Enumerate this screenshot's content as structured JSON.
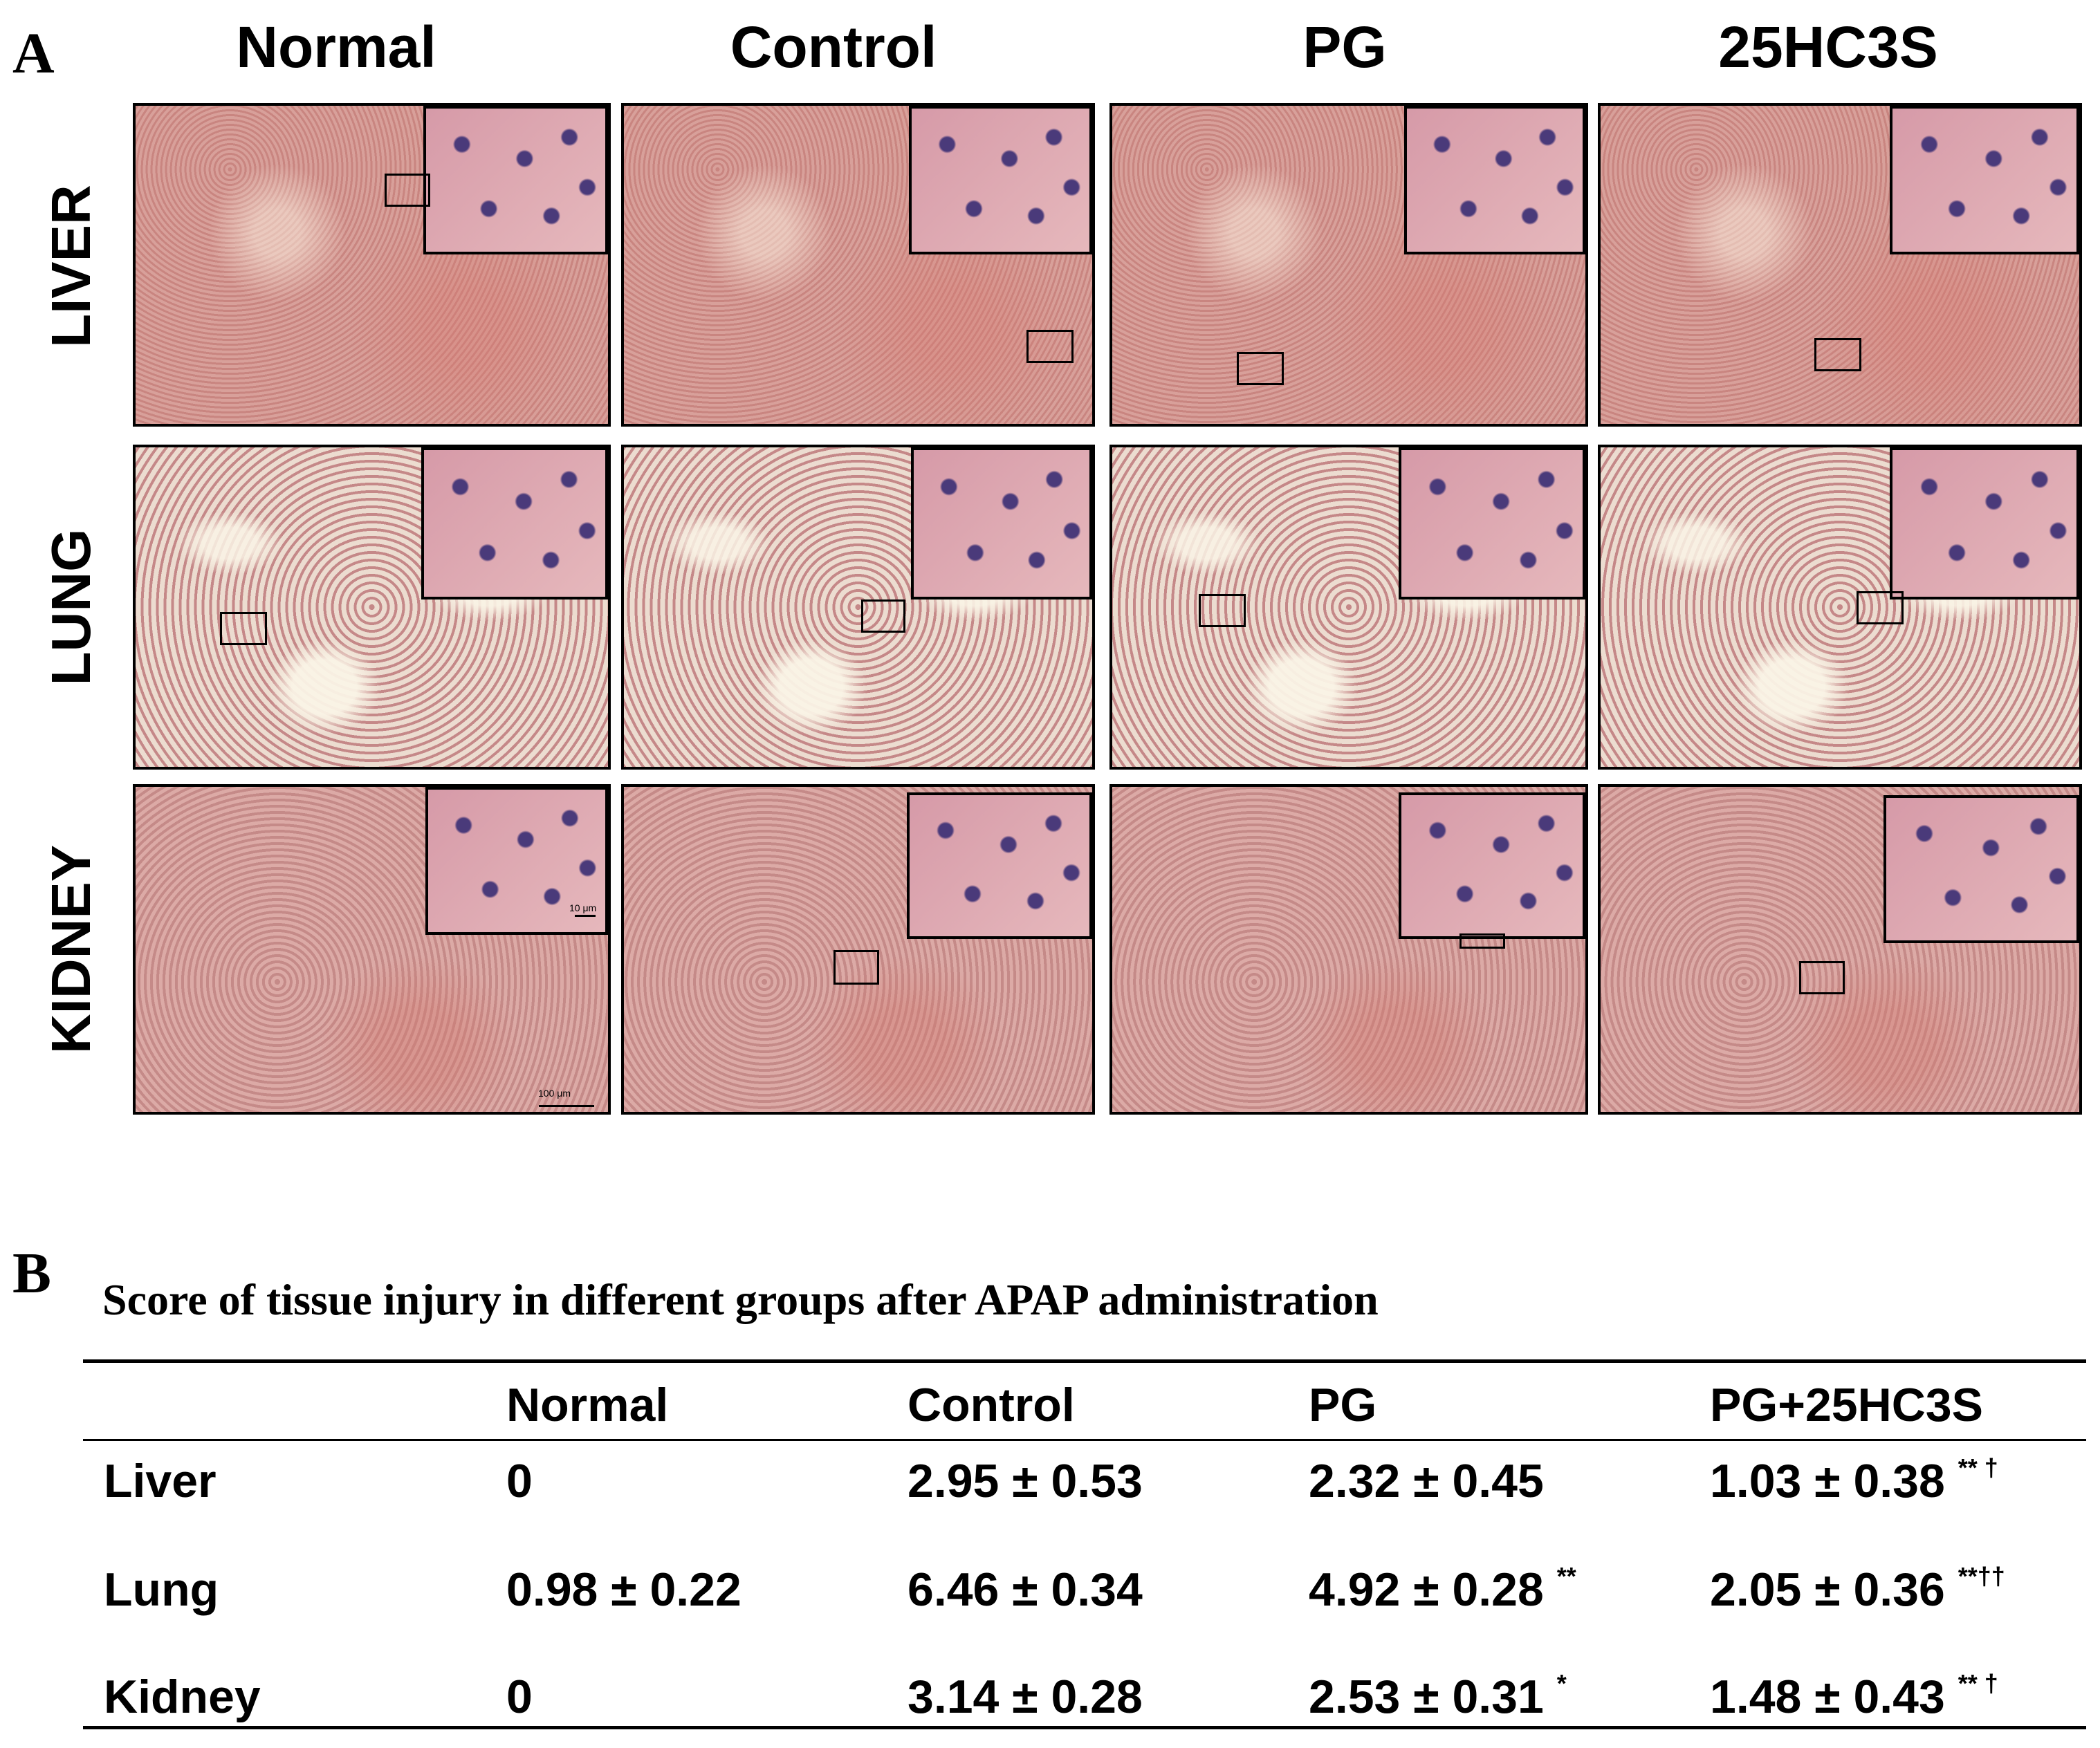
{
  "panel_a": {
    "letter": "A",
    "columns": [
      "Normal",
      "Control",
      "PG",
      "25HC3S"
    ],
    "rows": [
      "LIVER",
      "LUNG",
      "KIDNEY"
    ],
    "scale_bar_main": "100 μm",
    "scale_bar_inset": "10 μm"
  },
  "panel_b": {
    "letter": "B",
    "title": "Score of tissue injury in different groups after APAP administration",
    "headers": [
      "",
      "Normal",
      "Control",
      "PG",
      "PG+25HC3S"
    ],
    "rows": [
      {
        "label": "Liver",
        "normal": "0",
        "control": "2.95 ± 0.53",
        "pg": "2.32 ± 0.45",
        "pg_mark": "",
        "combo": "1.03 ± 0.38",
        "combo_mark": "** †"
      },
      {
        "label": "Lung",
        "normal": "0.98 ± 0.22",
        "control": "6.46 ± 0.34",
        "pg": "4.92 ± 0.28",
        "pg_mark": "**",
        "combo": "2.05 ± 0.36",
        "combo_mark": "**††"
      },
      {
        "label": "Kidney",
        "normal": "0",
        "control": "3.14 ± 0.28",
        "pg": "2.53 ± 0.31",
        "pg_mark": "*",
        "combo": "1.48 ± 0.43",
        "combo_mark": "** †"
      }
    ]
  }
}
